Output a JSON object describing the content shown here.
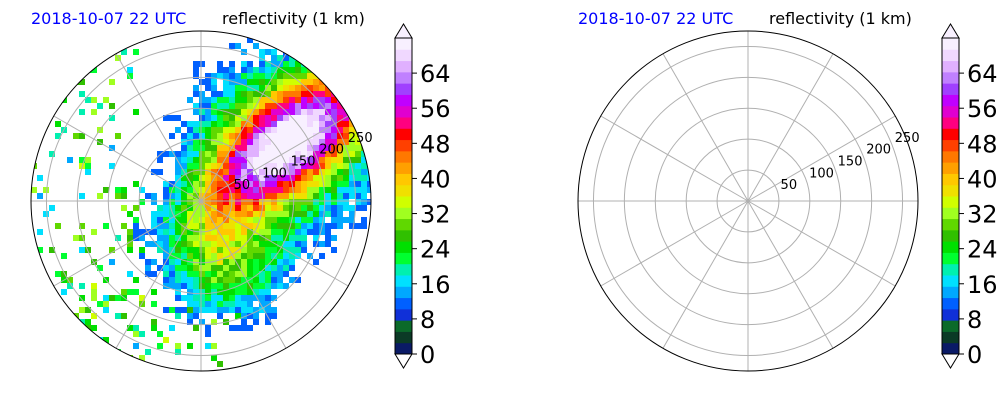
{
  "chart_data": [
    {
      "type": "heatmap",
      "title_time": "2018-10-07 22 UTC",
      "title_variable": "reflectivity (1 km)",
      "projection": "polar",
      "range_rings": [
        50,
        100,
        150,
        200,
        250
      ],
      "range_max": 275,
      "has_data": true,
      "colorbar": {
        "ticks": [
          0,
          8,
          16,
          24,
          32,
          40,
          48,
          56,
          64
        ],
        "range": [
          0,
          72
        ],
        "extend": "both"
      }
    },
    {
      "type": "heatmap",
      "title_time": "2018-10-07 22 UTC",
      "title_variable": "reflectivity (1 km)",
      "projection": "polar",
      "range_rings": [
        50,
        100,
        150,
        200,
        250
      ],
      "range_max": 275,
      "has_data": false,
      "colorbar": {
        "ticks": [
          0,
          8,
          16,
          24,
          32,
          40,
          48,
          56,
          64
        ],
        "range": [
          0,
          72
        ],
        "extend": "both"
      }
    }
  ],
  "colormap": [
    "#0a1a66",
    "#0b3a26",
    "#0b6a2a",
    "#1030d8",
    "#0060ff",
    "#00a8ff",
    "#00e0ff",
    "#00f0b0",
    "#00ff30",
    "#00e000",
    "#30c000",
    "#60d800",
    "#a0ff20",
    "#d0ff00",
    "#f0e000",
    "#ffc800",
    "#ffa000",
    "#ff7800",
    "#ff4000",
    "#ff0000",
    "#ff0080",
    "#e000d0",
    "#c000ff",
    "#a040ff",
    "#c080ff",
    "#e0b0ff",
    "#f0d8ff",
    "#f8f0ff"
  ],
  "colors": {
    "title_time": "#0000ff",
    "grid": "#b0b0b0",
    "outline": "#000000"
  }
}
